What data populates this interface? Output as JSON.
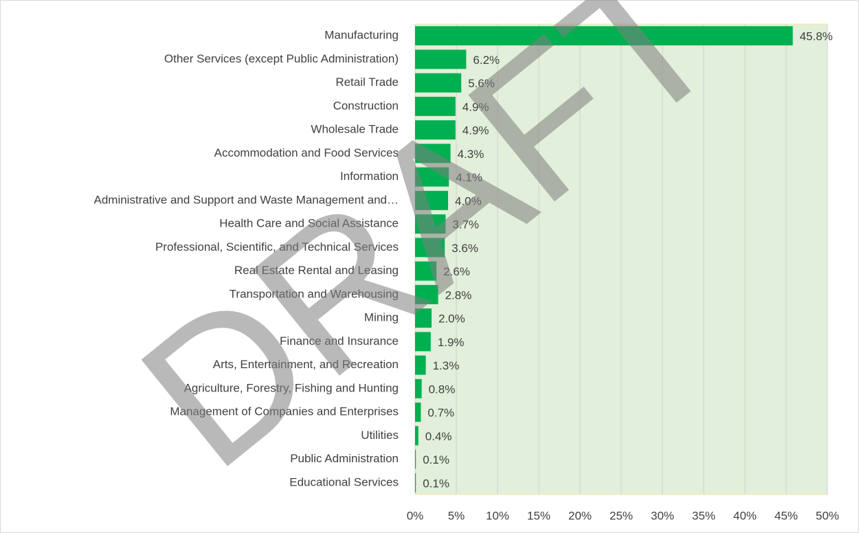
{
  "chart_data": {
    "type": "hbar",
    "categories": [
      "Manufacturing",
      "Other Services (except Public Administration)",
      "Retail Trade",
      "Construction",
      "Wholesale Trade",
      "Accommodation and Food Services",
      "Information",
      "Administrative and Support and Waste Management and…",
      "Health Care and Social Assistance",
      "Professional, Scientific, and Technical Services",
      "Real Estate Rental and Leasing",
      "Transportation and Warehousing",
      "Mining",
      "Finance and Insurance",
      "Arts, Entertainment, and Recreation",
      "Agriculture, Forestry, Fishing and Hunting",
      "Management of Companies and Enterprises",
      "Utilities",
      "Public Administration",
      "Educational Services"
    ],
    "values": [
      45.8,
      6.2,
      5.6,
      4.9,
      4.9,
      4.3,
      4.1,
      4.0,
      3.7,
      3.6,
      2.6,
      2.8,
      2.0,
      1.9,
      1.3,
      0.8,
      0.7,
      0.4,
      0.1,
      0.1
    ],
    "value_labels": [
      "45.8%",
      "6.2%",
      "5.6%",
      "4.9%",
      "4.9%",
      "4.3%",
      "4.1%",
      "4.0%",
      "3.7%",
      "3.6%",
      "2.6%",
      "2.8%",
      "2.0%",
      "1.9%",
      "1.3%",
      "0.8%",
      "0.7%",
      "0.4%",
      "0.1%",
      "0.1%"
    ],
    "color": "#00b050",
    "xlim": [
      0,
      50
    ],
    "xticks": [
      {
        "value": 0,
        "label": "0%"
      },
      {
        "value": 5,
        "label": "5%"
      },
      {
        "value": 10,
        "label": "10%"
      },
      {
        "value": 15,
        "label": "15%"
      },
      {
        "value": 20,
        "label": "20%"
      },
      {
        "value": 25,
        "label": "25%"
      },
      {
        "value": 30,
        "label": "30%"
      },
      {
        "value": 35,
        "label": "35%"
      },
      {
        "value": 40,
        "label": "40%"
      },
      {
        "value": 45,
        "label": "45%"
      },
      {
        "value": 50,
        "label": "50%"
      }
    ],
    "grid": true,
    "watermark": "DRAFT"
  }
}
